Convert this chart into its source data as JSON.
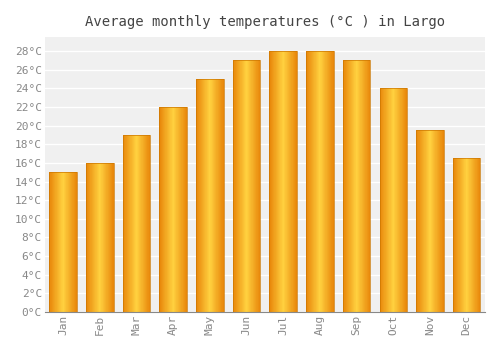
{
  "title": "Average monthly temperatures (°C ) in Largo",
  "months": [
    "Jan",
    "Feb",
    "Mar",
    "Apr",
    "May",
    "Jun",
    "Jul",
    "Aug",
    "Sep",
    "Oct",
    "Nov",
    "Dec"
  ],
  "values": [
    15,
    16,
    19,
    22,
    25,
    27,
    28,
    28,
    27,
    24,
    19.5,
    16.5
  ],
  "bar_color_face": "#FFA500",
  "bar_color_edge": "#CC7700",
  "bar_color_highlight": "#FFDD88",
  "background_color": "#FFFFFF",
  "plot_bg_color": "#F0F0F0",
  "grid_color": "#FFFFFF",
  "yticks": [
    0,
    2,
    4,
    6,
    8,
    10,
    12,
    14,
    16,
    18,
    20,
    22,
    24,
    26,
    28
  ],
  "ylim": [
    0,
    29.5
  ],
  "title_fontsize": 10,
  "tick_fontsize": 8,
  "tick_color": "#888888",
  "title_color": "#444444"
}
